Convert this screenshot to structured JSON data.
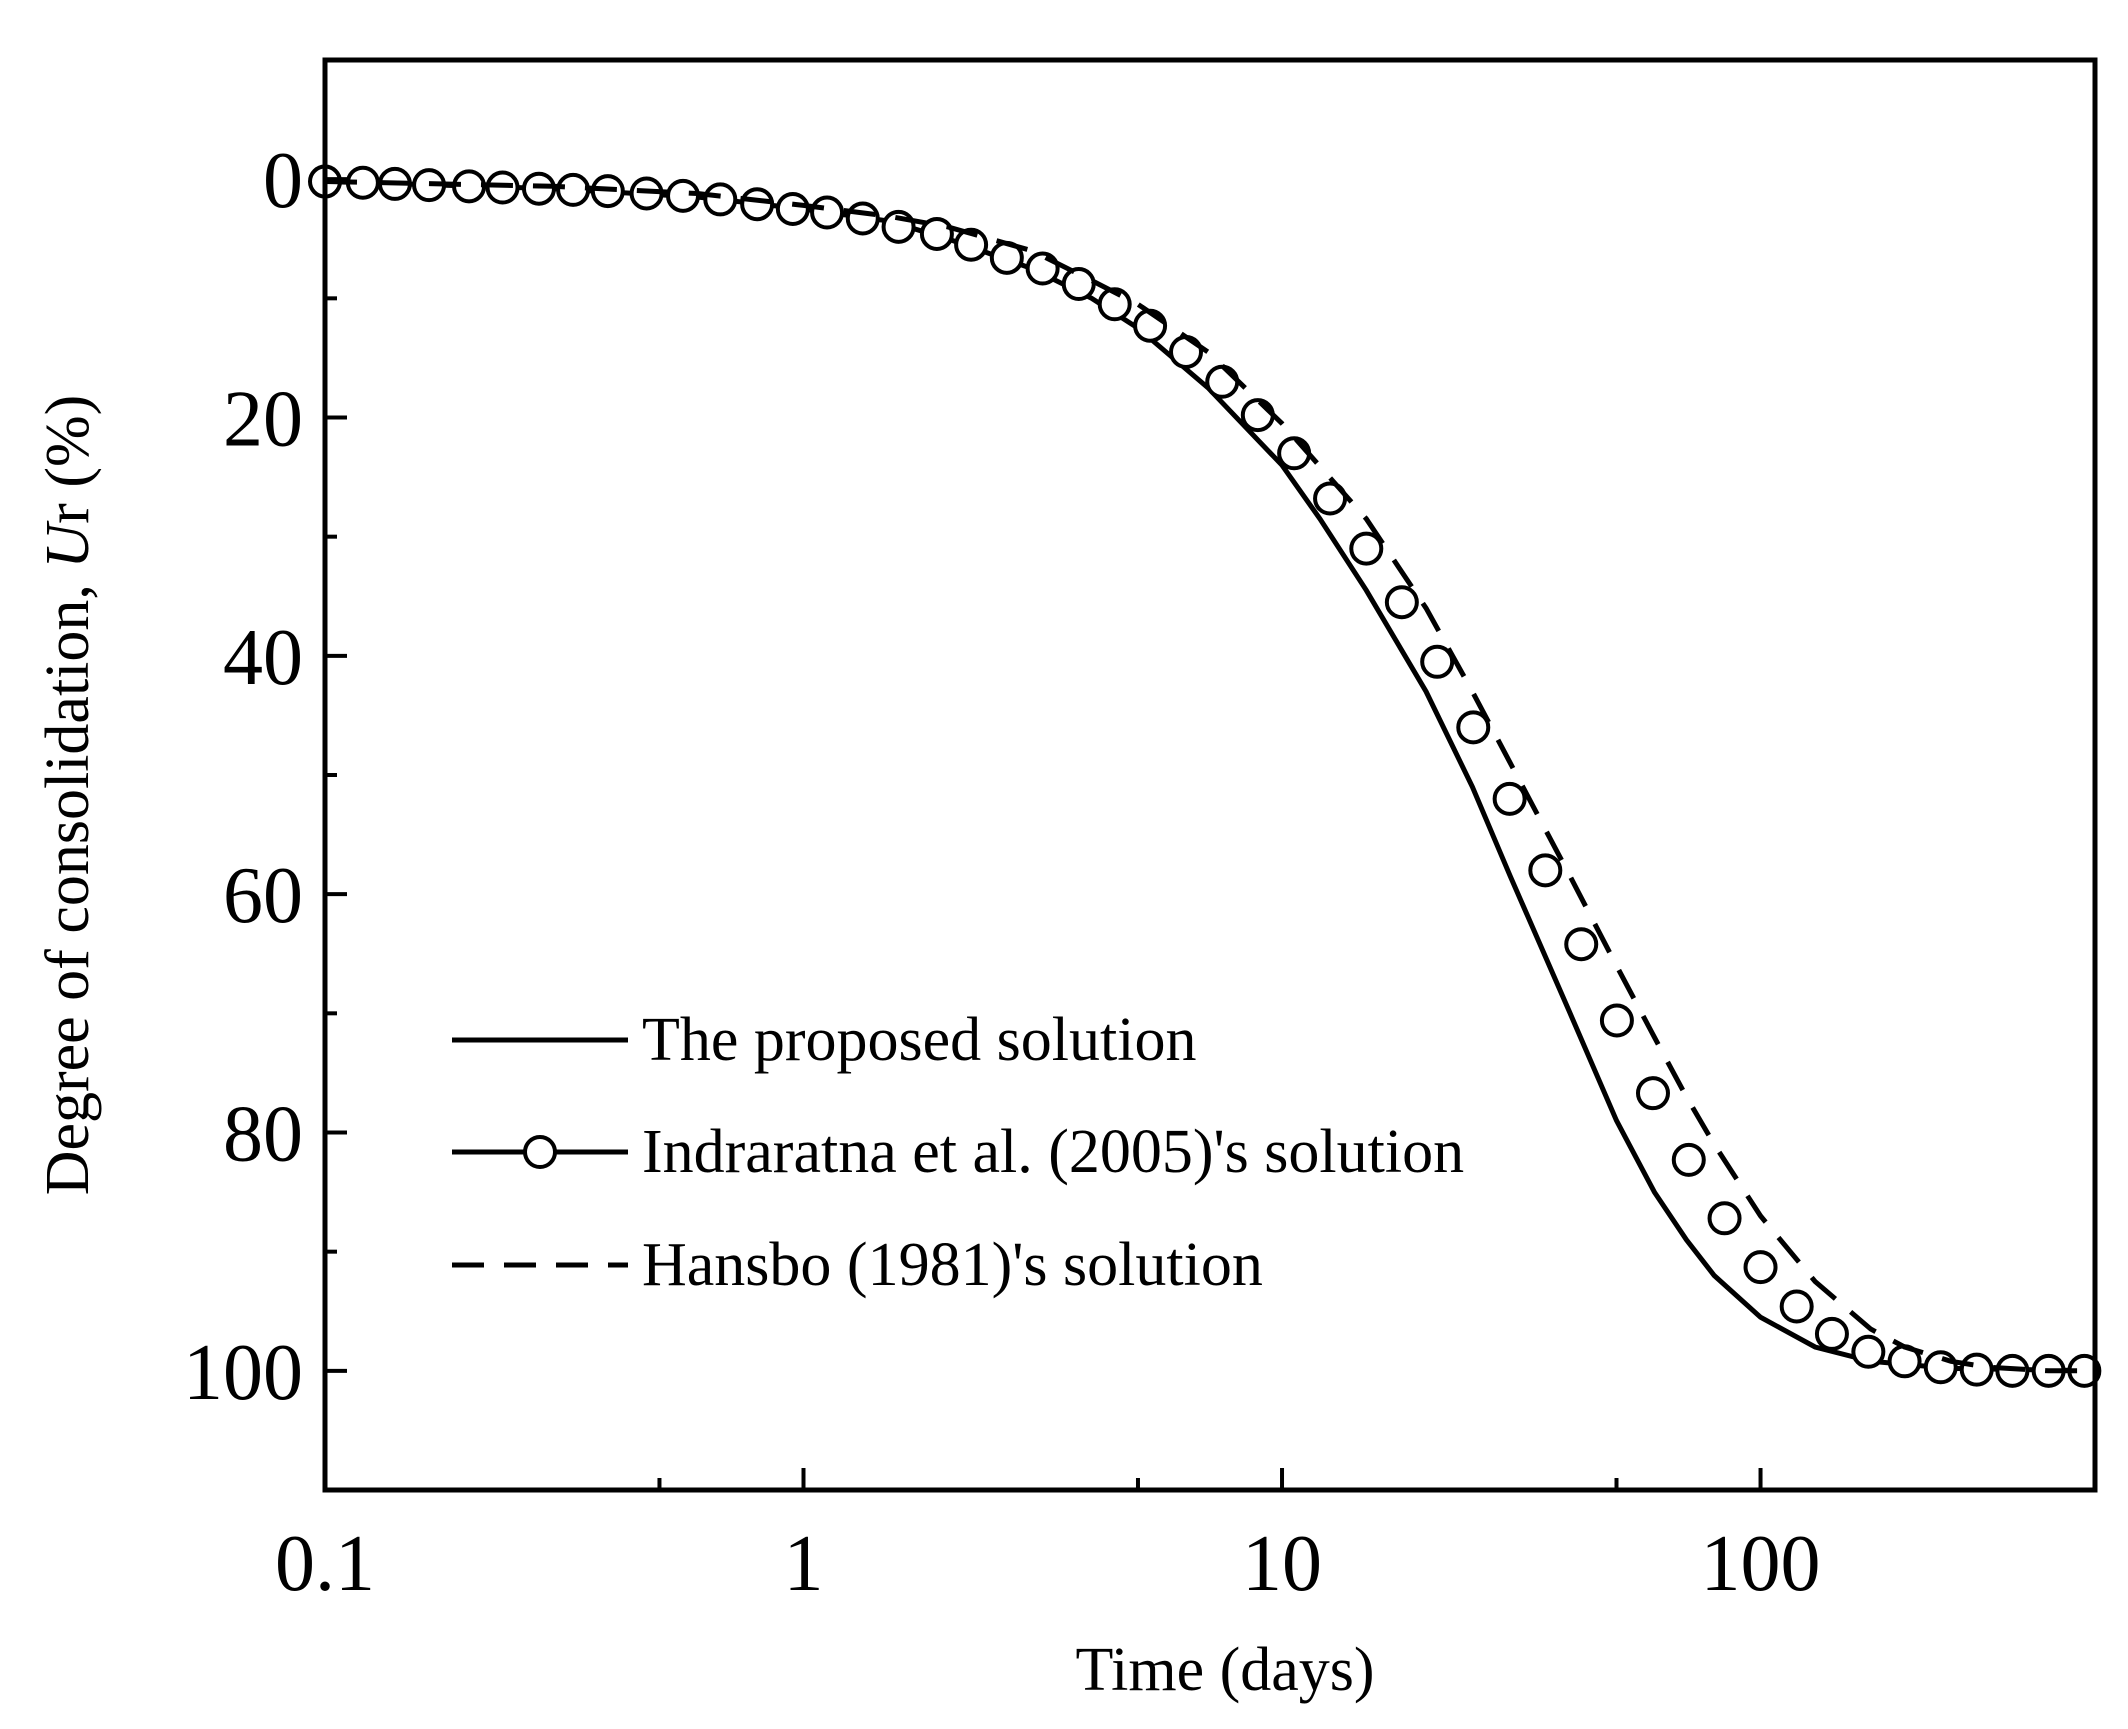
{
  "chart_data": {
    "type": "line",
    "title": "",
    "xlabel": "Time (days)",
    "ylabel": {
      "prefix": "Degree of  consolidation, ",
      "italic": "U",
      "sub": "r",
      "suffix": " (%)"
    },
    "x_scale": "log",
    "xlim": [
      0.1,
      500
    ],
    "ylim": [
      -10,
      110
    ],
    "y_inverted": true,
    "x_ticks": [
      0.1,
      1,
      10,
      100
    ],
    "x_tick_labels": [
      "0.1",
      "1",
      "10",
      "100"
    ],
    "y_ticks": [
      0,
      20,
      40,
      60,
      80,
      100
    ],
    "y_tick_labels": [
      "0",
      "20",
      "40",
      "60",
      "80",
      "100"
    ],
    "grid": false,
    "legend_position": "bottom-left",
    "series": [
      {
        "name": "The proposed solution",
        "style": "solid",
        "points": [
          [
            0.1,
            0.2
          ],
          [
            0.3,
            0.8
          ],
          [
            0.6,
            1.5
          ],
          [
            1,
            2.5
          ],
          [
            1.5,
            3.5
          ],
          [
            2,
            5
          ],
          [
            3,
            7.5
          ],
          [
            4,
            10
          ],
          [
            5,
            12.5
          ],
          [
            7,
            17.5
          ],
          [
            10,
            24
          ],
          [
            12,
            28.5
          ],
          [
            15,
            34.5
          ],
          [
            20,
            43
          ],
          [
            25,
            51
          ],
          [
            30,
            58.5
          ],
          [
            40,
            70
          ],
          [
            50,
            79
          ],
          [
            60,
            85
          ],
          [
            70,
            89
          ],
          [
            80,
            92
          ],
          [
            100,
            95.5
          ],
          [
            130,
            98
          ],
          [
            170,
            99.2
          ],
          [
            250,
            99.8
          ],
          [
            500,
            100
          ]
        ]
      },
      {
        "name": "Indraratna et al. (2005)'s solution",
        "style": "solid-circle",
        "points": [
          [
            0.1,
            0.2
          ],
          [
            0.12,
            0.3
          ],
          [
            0.14,
            0.4
          ],
          [
            0.165,
            0.5
          ],
          [
            0.2,
            0.6
          ],
          [
            0.235,
            0.7
          ],
          [
            0.28,
            0.8
          ],
          [
            0.33,
            0.9
          ],
          [
            0.39,
            1
          ],
          [
            0.47,
            1.2
          ],
          [
            0.56,
            1.4
          ],
          [
            0.67,
            1.7
          ],
          [
            0.8,
            2.1
          ],
          [
            0.95,
            2.5
          ],
          [
            1.12,
            2.8
          ],
          [
            1.33,
            3.3
          ],
          [
            1.58,
            4
          ],
          [
            1.9,
            4.6
          ],
          [
            2.24,
            5.5
          ],
          [
            2.66,
            6.6
          ],
          [
            3.16,
            7.5
          ],
          [
            3.76,
            8.8
          ],
          [
            4.47,
            10.5
          ],
          [
            5.3,
            12.3
          ],
          [
            6.3,
            14.5
          ],
          [
            7.5,
            17
          ],
          [
            8.9,
            19.8
          ],
          [
            10.6,
            23
          ],
          [
            12.6,
            26.8
          ],
          [
            15,
            31
          ],
          [
            17.8,
            35.5
          ],
          [
            21.1,
            40.5
          ],
          [
            25.1,
            46
          ],
          [
            29.9,
            52
          ],
          [
            35.5,
            58
          ],
          [
            42.2,
            64.2
          ],
          [
            50.1,
            70.6
          ],
          [
            59.6,
            76.7
          ],
          [
            70.8,
            82.3
          ],
          [
            84.1,
            87.2
          ],
          [
            100,
            91.3
          ],
          [
            119,
            94.6
          ],
          [
            141,
            96.9
          ],
          [
            168,
            98.4
          ],
          [
            200,
            99.2
          ],
          [
            238,
            99.7
          ],
          [
            283,
            99.9
          ],
          [
            336,
            100
          ],
          [
            400,
            100
          ],
          [
            475,
            100
          ]
        ]
      },
      {
        "name": "Hansbo (1981)'s solution",
        "style": "dashed",
        "points": [
          [
            0.1,
            0.2
          ],
          [
            0.3,
            0.6
          ],
          [
            0.6,
            1.2
          ],
          [
            1,
            2.2
          ],
          [
            1.5,
            3.1
          ],
          [
            2,
            4
          ],
          [
            3,
            6
          ],
          [
            4,
            8.5
          ],
          [
            5,
            10.5
          ],
          [
            7,
            14.5
          ],
          [
            10,
            20.5
          ],
          [
            15,
            28.5
          ],
          [
            20,
            36
          ],
          [
            25,
            43
          ],
          [
            30,
            49
          ],
          [
            40,
            58.5
          ],
          [
            50,
            66
          ],
          [
            60,
            72
          ],
          [
            70,
            77
          ],
          [
            80,
            81
          ],
          [
            100,
            87
          ],
          [
            130,
            92.5
          ],
          [
            170,
            96.5
          ],
          [
            200,
            98
          ],
          [
            250,
            99.2
          ],
          [
            300,
            99.7
          ],
          [
            400,
            100
          ],
          [
            500,
            100
          ]
        ]
      }
    ]
  }
}
